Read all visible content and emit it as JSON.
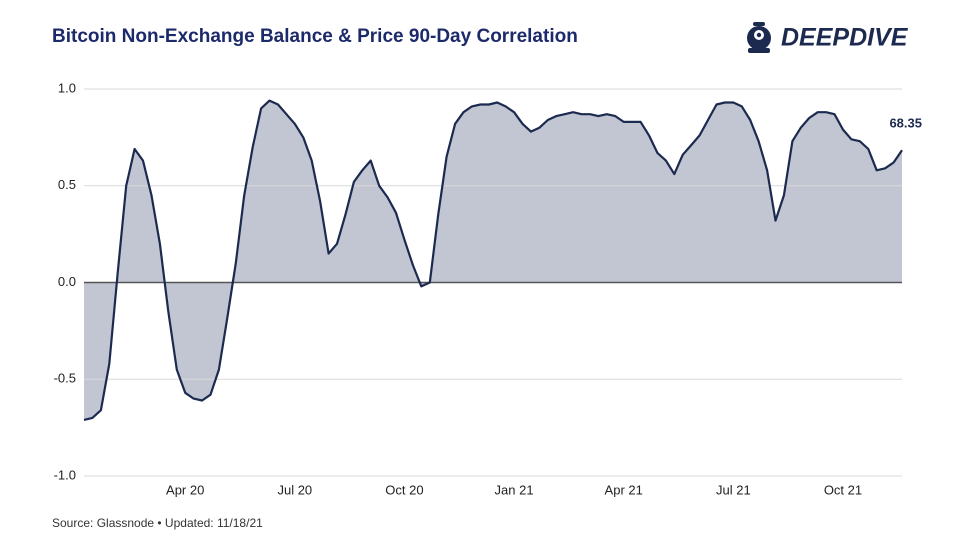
{
  "chart_data": {
    "type": "area",
    "title": "Bitcoin Non-Exchange Balance & Price 90-Day Correlation",
    "logo": "DEEPDIVE",
    "source": "Source: Glassnode • Updated: 11/18/21",
    "annotation": "68.35",
    "color": "#1c2a4f",
    "fill": "#b7bccb",
    "categories": [
      null,
      null,
      null,
      null,
      null,
      null,
      null,
      null,
      null,
      null,
      null,
      null,
      "Apr 20",
      null,
      null,
      null,
      null,
      null,
      null,
      null,
      null,
      null,
      null,
      null,
      null,
      "Jul 20",
      null,
      null,
      null,
      null,
      null,
      null,
      null,
      null,
      null,
      null,
      null,
      null,
      "Oct 20",
      null,
      null,
      null,
      null,
      null,
      null,
      null,
      null,
      null,
      null,
      null,
      null,
      "Jan 21",
      null,
      null,
      null,
      null,
      null,
      null,
      null,
      null,
      null,
      null,
      null,
      null,
      "Apr 21",
      null,
      null,
      null,
      null,
      null,
      null,
      null,
      null,
      null,
      null,
      null,
      null,
      "Jul 21",
      null,
      null,
      null,
      null,
      null,
      null,
      null,
      null,
      null,
      null,
      null,
      null,
      "Oct 21",
      null,
      null,
      null,
      null,
      null,
      null,
      null
    ],
    "values": [
      -0.71,
      -0.7,
      -0.66,
      -0.42,
      0.05,
      0.5,
      0.69,
      0.63,
      0.45,
      0.2,
      -0.15,
      -0.45,
      -0.57,
      -0.6,
      -0.61,
      -0.58,
      -0.45,
      -0.18,
      0.1,
      0.45,
      0.7,
      0.9,
      0.94,
      0.92,
      0.87,
      0.82,
      0.75,
      0.63,
      0.42,
      0.15,
      0.2,
      0.35,
      0.52,
      0.58,
      0.63,
      0.5,
      0.44,
      0.36,
      0.22,
      0.09,
      -0.02,
      0.0,
      0.35,
      0.65,
      0.82,
      0.88,
      0.91,
      0.92,
      0.92,
      0.93,
      0.91,
      0.88,
      0.82,
      0.78,
      0.8,
      0.84,
      0.86,
      0.87,
      0.88,
      0.87,
      0.87,
      0.86,
      0.87,
      0.86,
      0.83,
      0.83,
      0.83,
      0.76,
      0.67,
      0.63,
      0.56,
      0.66,
      0.71,
      0.76,
      0.84,
      0.92,
      0.93,
      0.93,
      0.91,
      0.84,
      0.73,
      0.58,
      0.32,
      0.45,
      0.73,
      0.8,
      0.85,
      0.88,
      0.88,
      0.87,
      0.79,
      0.74,
      0.73,
      0.69,
      0.58,
      0.59,
      0.62,
      0.6835
    ],
    "ylim": [
      -1,
      1
    ],
    "yticks": [
      {
        "value": -1,
        "label": "-1.0"
      },
      -0.5,
      {
        "value": 0,
        "label": "0.0"
      },
      0.5,
      {
        "value": 1,
        "label": "1.0"
      }
    ],
    "grid": true
  }
}
